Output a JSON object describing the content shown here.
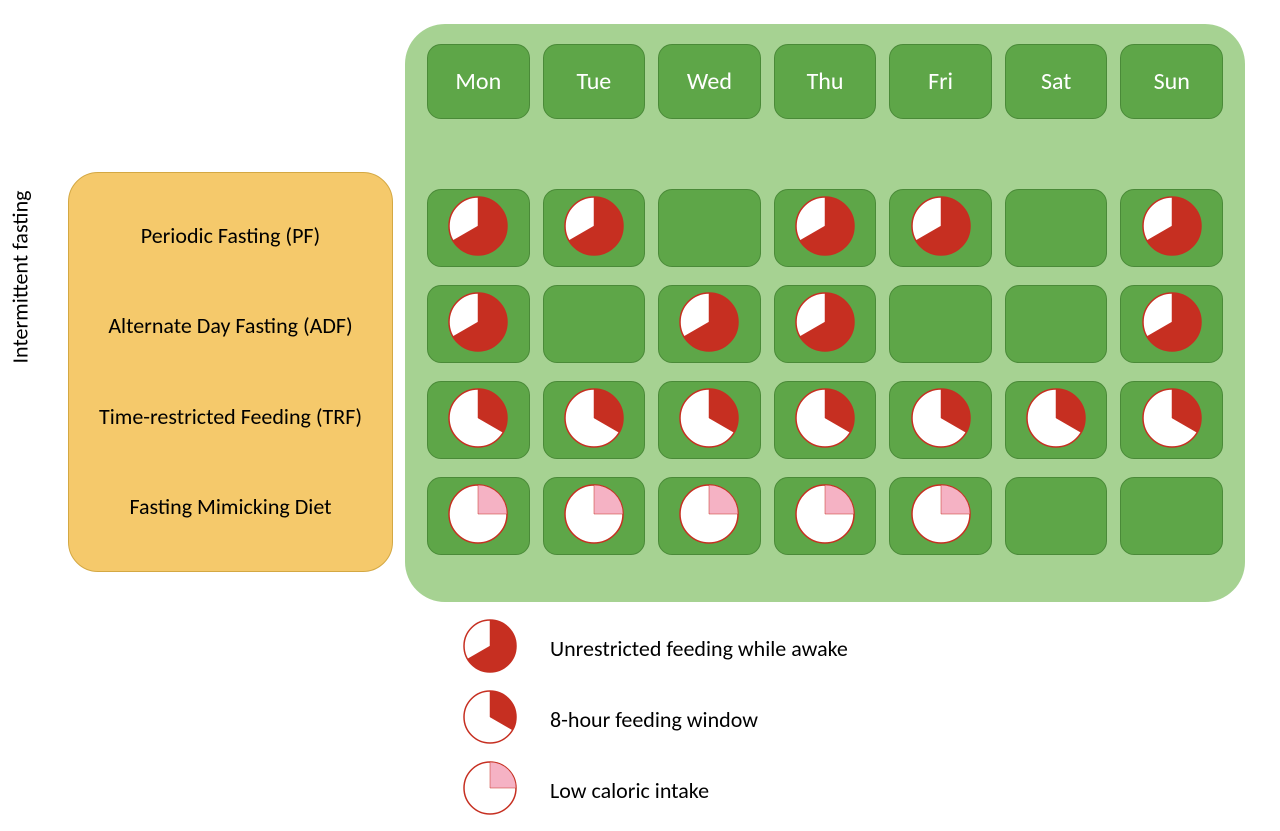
{
  "sideLabel": "Intermittent fasting",
  "categories": [
    "Periodic Fasting (PF)",
    "Alternate Day Fasting (ADF)",
    "Time-restricted Feeding (TRF)",
    "Fasting Mimicking Diet"
  ],
  "days": [
    "Mon",
    "Tue",
    "Wed",
    "Thu",
    "Fri",
    "Sat",
    "Sun"
  ],
  "grid": [
    [
      "unrestricted",
      "unrestricted",
      "empty",
      "unrestricted",
      "unrestricted",
      "empty",
      "unrestricted"
    ],
    [
      "unrestricted",
      "empty",
      "unrestricted",
      "unrestricted",
      "empty",
      "empty",
      "unrestricted"
    ],
    [
      "eight",
      "eight",
      "eight",
      "eight",
      "eight",
      "eight",
      "eight"
    ],
    [
      "low",
      "low",
      "low",
      "low",
      "low",
      "empty",
      "empty"
    ]
  ],
  "legend": [
    {
      "type": "unrestricted",
      "label": "Unrestricted feeding while awake"
    },
    {
      "type": "eight",
      "label": "8-hour feeding window"
    },
    {
      "type": "low",
      "label": "Low caloric intake"
    }
  ],
  "pieStyles": {
    "unrestricted": {
      "fillColor": "#c62f21",
      "emptyColor": "#ffffff",
      "borderColor": "#c62f21",
      "startAngle": 270,
      "sweepAngle": 240
    },
    "eight": {
      "fillColor": "#c62f21",
      "emptyColor": "#ffffff",
      "borderColor": "#c62f21",
      "startAngle": 270,
      "sweepAngle": 120
    },
    "low": {
      "fillColor": "#f5b2c4",
      "emptyColor": "#ffffff",
      "borderColor": "#c62f21",
      "startAngle": 270,
      "sweepAngle": 90
    }
  },
  "colors": {
    "calendarBg": "#a6d292",
    "cellBg": "#5ea648",
    "cellBorder": "#4a8a38",
    "categoriesBg": "#f5c96b",
    "categoriesBorder": "#d4a843",
    "dayText": "#ffffff",
    "text": "#000000"
  },
  "pieSize": 62,
  "legendPieSize": 56
}
